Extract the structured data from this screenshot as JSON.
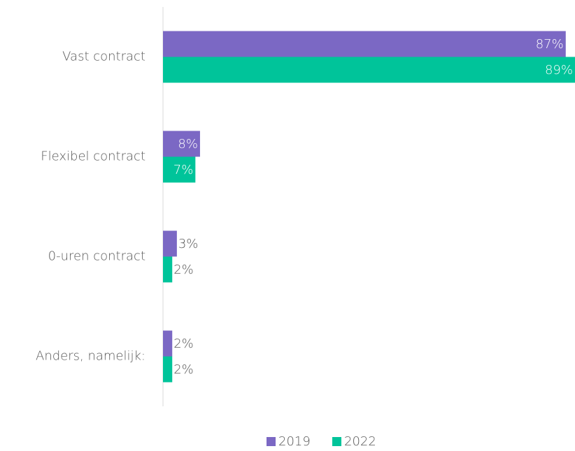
{
  "chart_data": {
    "type": "bar",
    "orientation": "horizontal",
    "categories": [
      "Vast contract",
      "Flexibel contract",
      "0-uren contract",
      "Anders, namelijk:"
    ],
    "series": [
      {
        "name": "2019",
        "color": "#7b68c4",
        "values": [
          87,
          8,
          3,
          2
        ],
        "value_labels": [
          "87%",
          "8%",
          "3%",
          "2%"
        ]
      },
      {
        "name": "2022",
        "color": "#00c49a",
        "values": [
          89,
          7,
          2,
          2
        ],
        "value_labels": [
          "89%",
          "7%",
          "2%",
          "2%"
        ]
      }
    ],
    "legend": "bottom"
  }
}
